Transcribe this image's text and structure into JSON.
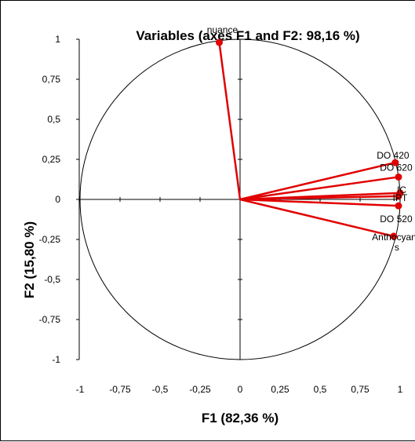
{
  "chart_data": {
    "type": "scatter",
    "title": "Variables (axes F1 and F2: 98,16 %)",
    "xlabel": "F1 (82,36 %)",
    "ylabel": "F2 (15,80 %)",
    "xlim": [
      -1,
      1
    ],
    "ylim": [
      -1,
      1
    ],
    "x_ticks": [
      "-1",
      "-0,75",
      "-0,5",
      "-0,25",
      "0",
      "0,25",
      "0,5",
      "0,75",
      "1"
    ],
    "y_ticks": [
      "1",
      "0,75",
      "0,5",
      "0,25",
      "0",
      "-0,25",
      "-0,5",
      "-0,75",
      "-1"
    ],
    "correlation_circle": true,
    "colors": {
      "vectors": "#e00000",
      "axes": "#000000"
    },
    "points": [
      {
        "label": "nuance",
        "x": -0.13,
        "y": 0.98
      },
      {
        "label": "DO 420",
        "x": 0.97,
        "y": 0.23
      },
      {
        "label": "DO 620",
        "x": 0.99,
        "y": 0.14
      },
      {
        "label": "IC",
        "x": 1.0,
        "y": 0.04
      },
      {
        "label": "IPT",
        "x": 0.99,
        "y": 0.02
      },
      {
        "label": "DO 520",
        "x": 0.99,
        "y": -0.04
      },
      {
        "label": "Anthocyanes",
        "x": 0.96,
        "y": -0.23
      }
    ]
  }
}
